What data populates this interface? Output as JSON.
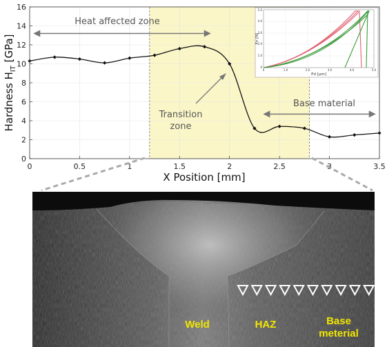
{
  "chart_data": {
    "type": "line",
    "xlabel": "X Position [mm]",
    "ylabel": "Hardness H",
    "ylabel_sub": "IT",
    "ylabel_unit": " [GPa]",
    "xlim": [
      0,
      3.5
    ],
    "ylim": [
      0,
      16
    ],
    "xticks": [
      "0",
      "0.5",
      "1",
      "1.5",
      "2",
      "2.5",
      "3",
      "3.5"
    ],
    "xtick_values": [
      0,
      0.5,
      1,
      1.5,
      2,
      2.5,
      3,
      3.5
    ],
    "yticks": [
      "0",
      "2",
      "4",
      "6",
      "8",
      "10",
      "12",
      "14",
      "16"
    ],
    "ytick_values": [
      0,
      2,
      4,
      6,
      8,
      10,
      12,
      14,
      16
    ],
    "grid": true,
    "series": [
      {
        "x": [
          0,
          0.25,
          0.5,
          0.75,
          1.0,
          1.25,
          1.5,
          1.75,
          2.0,
          2.25,
          2.5,
          2.75,
          3.0,
          3.25,
          3.5
        ],
        "values": [
          10.3,
          10.7,
          10.5,
          10.1,
          10.6,
          10.9,
          11.6,
          11.8,
          10.0,
          3.2,
          3.4,
          3.2,
          2.3,
          2.5,
          2.7
        ],
        "color": "#111111"
      }
    ],
    "shaded_region": {
      "x_range": [
        1.2,
        2.8
      ],
      "color": "#fbf6c8"
    },
    "annotations": {
      "haz": {
        "text": "Heat affected zone",
        "x_range": [
          0.05,
          1.8
        ],
        "y": 13.2
      },
      "transition": {
        "lines": [
          "Transition",
          "zone"
        ]
      },
      "base": {
        "text": "Base material",
        "x_range": [
          2.35,
          3.45
        ],
        "y": 4.7
      }
    }
  },
  "inset": {
    "xlabel": "Pd [µm]",
    "ylabel": "Fn [N]",
    "xticks": [
      "0",
      "1.0",
      "2.0",
      "3.0",
      "4.0",
      "5.0"
    ],
    "yticks": [
      "0",
      "1.0",
      "2.0",
      "3.0",
      "4.0",
      "5.0"
    ],
    "series_colors": [
      "#e06070",
      "#3a9a3a"
    ]
  },
  "micrograph": {
    "labels": {
      "weld": "Weld",
      "haz": "HAZ",
      "base": [
        "Base",
        "meterial"
      ]
    },
    "indent_count": 10
  }
}
